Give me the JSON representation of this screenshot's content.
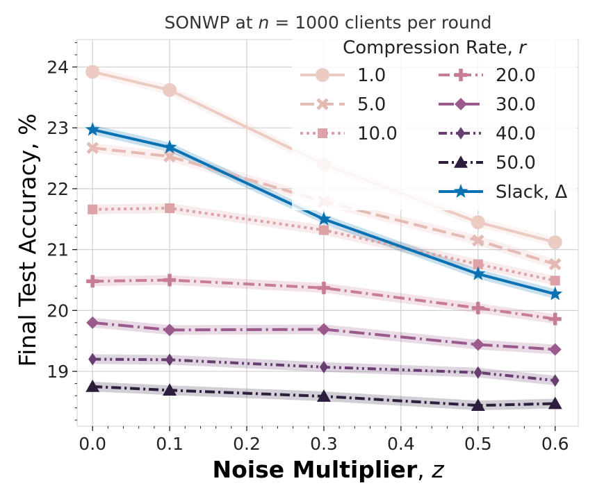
{
  "chart_data": {
    "type": "line",
    "title_prefix": "SONWP at ",
    "title_var": "n",
    "title_suffix": " = 1000 clients per round",
    "xlabel_bold": "Noise Multiplier",
    "xlabel_sep": ", ",
    "xlabel_var": "z",
    "ylabel": "Final Test Accuracy, %",
    "x": [
      0.0,
      0.1,
      0.3,
      0.5,
      0.6
    ],
    "xlim": [
      -0.02,
      0.63
    ],
    "ylim": [
      18.1,
      24.45
    ],
    "xticks": [
      "0.0",
      "0.1",
      "0.2",
      "0.3",
      "0.4",
      "0.5",
      "0.6"
    ],
    "yticks": [
      "19",
      "20",
      "21",
      "22",
      "23",
      "24"
    ],
    "grid": true,
    "legend": {
      "title_text": "Compression Rate, ",
      "title_var": "r",
      "placement": "top-right",
      "columns": 2
    },
    "series": [
      {
        "name": "1.0",
        "values": [
          23.92,
          23.62,
          22.4,
          21.45,
          21.12
        ],
        "color": "#eccbc3",
        "marker": "circle",
        "dash": "solid"
      },
      {
        "name": "5.0",
        "values": [
          22.67,
          22.53,
          21.79,
          21.15,
          20.76
        ],
        "color": "#e5b9b4",
        "marker": "x",
        "dash": "dashed"
      },
      {
        "name": "10.0",
        "values": [
          21.66,
          21.68,
          21.32,
          20.76,
          20.49
        ],
        "color": "#dca2a6",
        "marker": "square",
        "dash": "dotted"
      },
      {
        "name": "20.0",
        "values": [
          20.48,
          20.5,
          20.37,
          20.04,
          19.86
        ],
        "color": "#c77c95",
        "marker": "plus",
        "dash": "dashdot"
      },
      {
        "name": "30.0",
        "values": [
          19.8,
          19.68,
          19.69,
          19.44,
          19.36
        ],
        "color": "#9a5a8b",
        "marker": "diamond",
        "dash": "longdashdot"
      },
      {
        "name": "40.0",
        "values": [
          19.2,
          19.19,
          19.07,
          18.98,
          18.85
        ],
        "color": "#683e70",
        "marker": "thindiamond",
        "dash": "dashdotdot"
      },
      {
        "name": "50.0",
        "values": [
          18.75,
          18.69,
          18.59,
          18.44,
          18.47
        ],
        "color": "#2d1e3e",
        "marker": "triangle",
        "dash": "dashdot2"
      },
      {
        "name": "Slack, Δ",
        "values": [
          22.97,
          22.68,
          21.5,
          20.6,
          20.27
        ],
        "color": "#0a72b2",
        "marker": "star",
        "dash": "solid"
      }
    ]
  }
}
